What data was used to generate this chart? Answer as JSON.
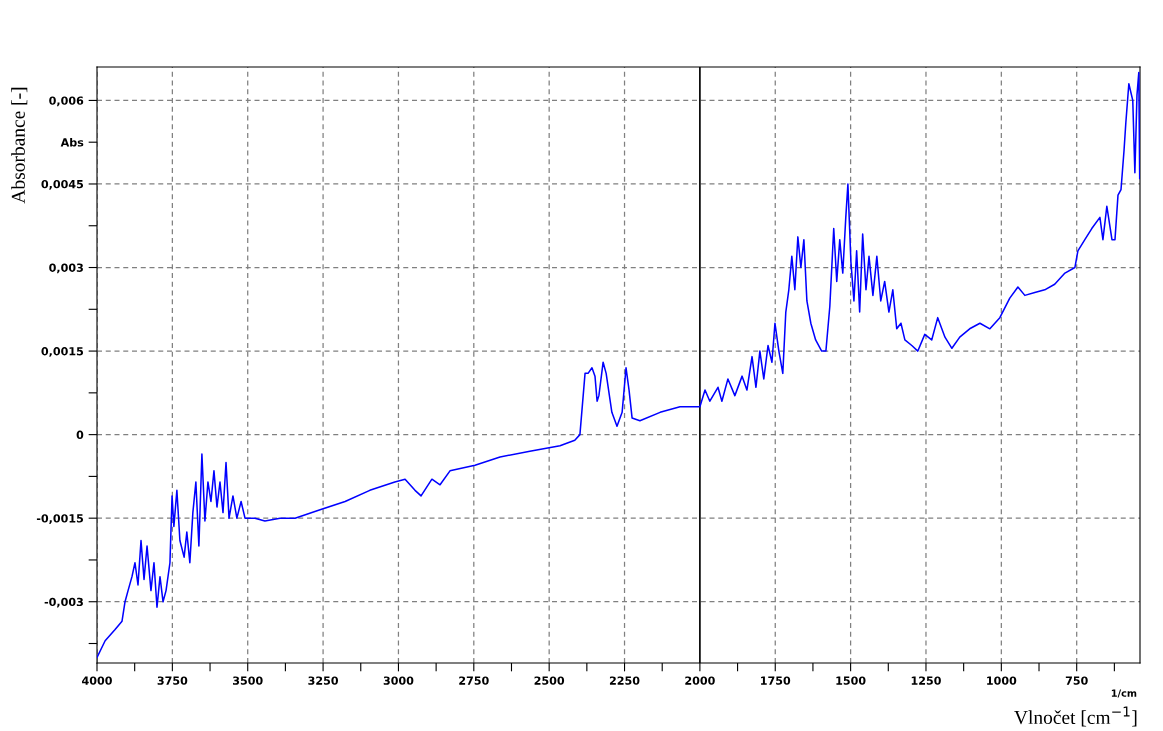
{
  "chart_data": {
    "type": "line",
    "xlabel": "Vlnočet [cm$^{−1}$]",
    "ylabel": "Absorbance [-]",
    "x": [
      4000,
      3973,
      3940,
      3917,
      3907,
      3897,
      3884,
      3874,
      3864,
      3854,
      3844,
      3834,
      3821,
      3811,
      3801,
      3791,
      3781,
      3771,
      3758,
      3751,
      3745,
      3735,
      3725,
      3711,
      3702,
      3692,
      3682,
      3672,
      3662,
      3652,
      3642,
      3632,
      3622,
      3612,
      3602,
      3592,
      3582,
      3572,
      3562,
      3549,
      3536,
      3522,
      3509,
      3476,
      3443,
      3393,
      3343,
      3260,
      3177,
      3095,
      3012,
      2978,
      2945,
      2925,
      2889,
      2862,
      2829,
      2746,
      2663,
      2564,
      2464,
      2415,
      2398,
      2381,
      2371,
      2358,
      2348,
      2341,
      2335,
      2321,
      2311,
      2292,
      2275,
      2258,
      2245,
      2235,
      2225,
      2199,
      2132,
      2066,
      2000,
      1983,
      1967,
      1940,
      1927,
      1907,
      1884,
      1860,
      1844,
      1827,
      1814,
      1801,
      1788,
      1774,
      1761,
      1751,
      1738,
      1725,
      1715,
      1705,
      1695,
      1685,
      1675,
      1665,
      1655,
      1645,
      1632,
      1616,
      1596,
      1582,
      1569,
      1556,
      1546,
      1536,
      1526,
      1516,
      1509,
      1499,
      1489,
      1480,
      1470,
      1460,
      1449,
      1439,
      1426,
      1413,
      1400,
      1387,
      1373,
      1360,
      1347,
      1333,
      1320,
      1297,
      1277,
      1254,
      1231,
      1211,
      1187,
      1164,
      1138,
      1105,
      1071,
      1038,
      1005,
      972,
      945,
      922,
      889,
      856,
      823,
      789,
      756,
      746,
      723,
      700,
      673,
      663,
      650,
      633,
      623,
      613,
      603,
      593,
      587,
      577,
      564,
      557,
      550,
      544,
      541
    ],
    "series": [
      {
        "color": "#0000ff",
        "values": [
          -0.004,
          -0.0037,
          -0.0035,
          -0.00335,
          -0.003,
          -0.0028,
          -0.00255,
          -0.0023,
          -0.0027,
          -0.0019,
          -0.0026,
          -0.002,
          -0.0028,
          -0.0023,
          -0.0031,
          -0.00255,
          -0.003,
          -0.0028,
          -0.0023,
          -0.0011,
          -0.00165,
          -0.001,
          -0.0019,
          -0.0022,
          -0.00175,
          -0.0023,
          -0.0014,
          -0.00085,
          -0.002,
          -0.00035,
          -0.00155,
          -0.00085,
          -0.0012,
          -0.00065,
          -0.0013,
          -0.00085,
          -0.0014,
          -0.0005,
          -0.0015,
          -0.0011,
          -0.0015,
          -0.0012,
          -0.0015,
          -0.0015,
          -0.00155,
          -0.0015,
          -0.0015,
          -0.00135,
          -0.0012,
          -0.001,
          -0.00085,
          -0.0008,
          -0.001,
          -0.0011,
          -0.0008,
          -0.0009,
          -0.00065,
          -0.00055,
          -0.0004,
          -0.0003,
          -0.0002,
          -0.0001,
          0,
          0.0011,
          0.0011,
          0.0012,
          0.00105,
          0.0006,
          0.0007,
          0.0013,
          0.0011,
          0.0004,
          0.00015,
          0.0004,
          0.0012,
          0.0008,
          0.0003,
          0.00025,
          0.0004,
          0.0005,
          0.0005,
          0.0008,
          0.0006,
          0.00085,
          0.0006,
          0.001,
          0.0007,
          0.00105,
          0.0008,
          0.0014,
          0.00085,
          0.0015,
          0.001,
          0.0016,
          0.0013,
          0.002,
          0.0015,
          0.0011,
          0.0022,
          0.0026,
          0.0032,
          0.0026,
          0.00355,
          0.003,
          0.0035,
          0.0024,
          0.002,
          0.0017,
          0.0015,
          0.0015,
          0.0023,
          0.0037,
          0.00275,
          0.0035,
          0.0029,
          0.0039,
          0.0045,
          0.0031,
          0.0024,
          0.0033,
          0.0022,
          0.0036,
          0.0026,
          0.0032,
          0.0025,
          0.0032,
          0.0024,
          0.00275,
          0.0022,
          0.0026,
          0.0019,
          0.002,
          0.0017,
          0.0016,
          0.0015,
          0.0018,
          0.0017,
          0.0021,
          0.00175,
          0.00155,
          0.00175,
          0.0019,
          0.002,
          0.0019,
          0.0021,
          0.00245,
          0.00265,
          0.0025,
          0.00255,
          0.0026,
          0.0027,
          0.0029,
          0.003,
          0.0033,
          0.0035,
          0.0037,
          0.0039,
          0.0035,
          0.0041,
          0.0035,
          0.0035,
          0.0043,
          0.0044,
          0.0051,
          0.0056,
          0.0063,
          0.006,
          0.0047,
          0.0061,
          0.0065,
          0.0046
        ]
      }
    ],
    "xlim": [
      4000,
      540
    ],
    "ylim": [
      -0.0041,
      0.0066
    ],
    "xticks": [
      4000,
      {
        "value": 3875,
        "label": null
      },
      3750,
      {
        "value": 3625,
        "label": null
      },
      3500,
      {
        "value": 3375,
        "label": null
      },
      3250,
      {
        "value": 3125,
        "label": null
      },
      3000,
      {
        "value": 2875,
        "label": null
      },
      2750,
      {
        "value": 2625,
        "label": null
      },
      2500,
      {
        "value": 2375,
        "label": null
      },
      2250,
      {
        "value": 2125,
        "label": null
      },
      2000,
      {
        "value": 1875,
        "label": null
      },
      1750,
      {
        "value": 1625,
        "label": null
      },
      1500,
      {
        "value": 1375,
        "label": null
      },
      1250,
      {
        "value": 1125,
        "label": null
      },
      1000,
      {
        "value": 875,
        "label": null
      },
      750,
      {
        "value": 625,
        "label": null
      }
    ],
    "yticks": [
      {
        "value": -0.00375,
        "label": null
      },
      {
        "value": -0.003,
        "label": "-0,003"
      },
      {
        "value": -0.00225,
        "label": null
      },
      {
        "value": -0.0015,
        "label": "-0,0015"
      },
      {
        "value": -0.00075,
        "label": null
      },
      0,
      {
        "value": 0.00075,
        "label": null
      },
      {
        "value": 0.0015,
        "label": "0,0015"
      },
      {
        "value": 0.00225,
        "label": null
      },
      {
        "value": 0.003,
        "label": "0,003"
      },
      {
        "value": 0.00375,
        "label": null
      },
      {
        "value": 0.0045,
        "label": "0,0045"
      },
      {
        "value": 0.00525,
        "label": "Abs"
      },
      {
        "value": 0.006,
        "label": "0,006"
      }
    ],
    "grid": true,
    "marker": "none",
    "line_style": "solid",
    "ref_lines": [
      {
        "axis": "x",
        "value": 2000,
        "color": "#000000",
        "line_style": "solid"
      }
    ],
    "annotations": [
      "1/cm"
    ]
  }
}
